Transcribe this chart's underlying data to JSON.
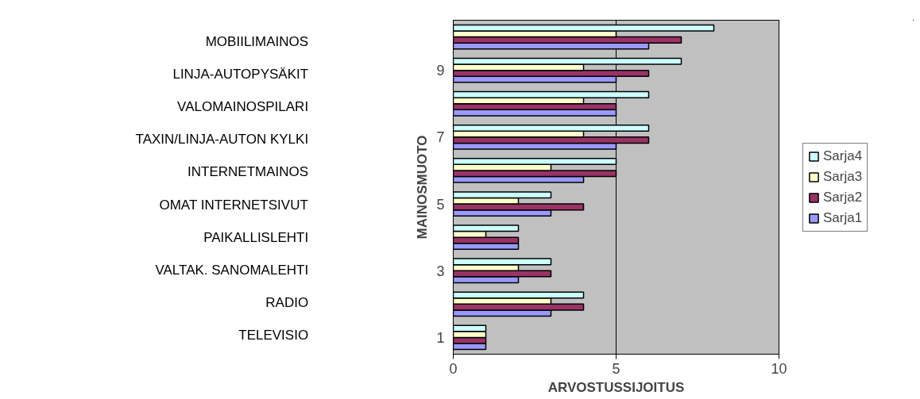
{
  "chart_data": {
    "type": "bar",
    "orientation": "horizontal",
    "xlabel": "ARVOSTUSSIJOITUS",
    "ylabel": "MAINOSMUOTO",
    "categories": [
      null,
      "9",
      null,
      "7",
      null,
      "5",
      null,
      "3",
      null,
      "1"
    ],
    "series": [
      {
        "name": "Sarja1",
        "color": "#9999ff",
        "values": [
          6,
          5,
          5,
          5,
          4,
          3,
          2,
          2,
          3,
          1
        ]
      },
      {
        "name": "Sarja2",
        "color": "#993366",
        "values": [
          7,
          6,
          5,
          6,
          5,
          4,
          2,
          3,
          4,
          1
        ]
      },
      {
        "name": "Sarja3",
        "color": "#ffffcc",
        "values": [
          5,
          4,
          4,
          4,
          3,
          2,
          1,
          2,
          3,
          1
        ]
      },
      {
        "name": "Sarja4",
        "color": "#ccffff",
        "values": [
          8,
          7,
          6,
          6,
          5,
          3,
          2,
          3,
          4,
          1
        ]
      }
    ],
    "xlim": [
      0,
      10
    ],
    "xticks": [
      0,
      5,
      10
    ],
    "grid": "x",
    "legend": "right",
    "annotations": [
      "MOBIILIMAINOS",
      "LINJA-AUTOPYSÄKIT",
      "VALOMAINOSPILARI",
      "TAXIN/LINJA-AUTON KYLKI",
      "INTERNETMAINOS",
      "OMAT INTERNETSIVUT",
      "PAIKALLISLEHTI",
      "VALTAK. SANOMALEHTI",
      "RADIO",
      "TELEVISIO"
    ]
  }
}
